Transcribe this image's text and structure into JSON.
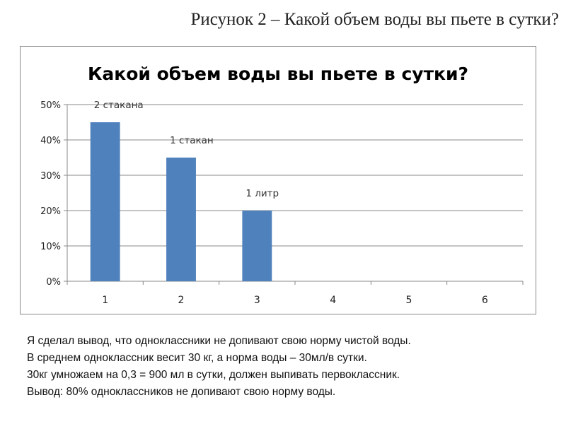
{
  "caption": "Рисунок 2 – Какой объем воды вы пьете в сутки?",
  "chart_data": {
    "type": "bar",
    "title": "Какой объем воды вы пьете в сутки?",
    "categories": [
      "1",
      "2",
      "3",
      "4",
      "5",
      "6"
    ],
    "series": [
      {
        "values": [
          45,
          35,
          20,
          null,
          null,
          null
        ]
      }
    ],
    "data_labels": [
      "2 стакана",
      "1 стакан",
      "1 литр",
      "",
      "",
      ""
    ],
    "ylim": [
      0,
      50
    ],
    "yticks": [
      0,
      10,
      20,
      30,
      40,
      50
    ],
    "ytick_labels": [
      "0%",
      "10%",
      "20%",
      "30%",
      "40%",
      "50%"
    ],
    "grid": true,
    "legend": "none",
    "bar_color": "#4F81BD"
  },
  "conclusion": {
    "lines": [
      "Я сделал вывод, что одноклассники не допивают свою норму  чистой воды.",
      "В среднем одноклассник весит 30 кг, а норма воды – 30мл/в сутки.",
      "30кг умножаем на 0,3  = 900 мл в сутки, должен выпивать первоклассник.",
      "Вывод: 80%  одноклассников не допивают свою норму воды."
    ]
  }
}
